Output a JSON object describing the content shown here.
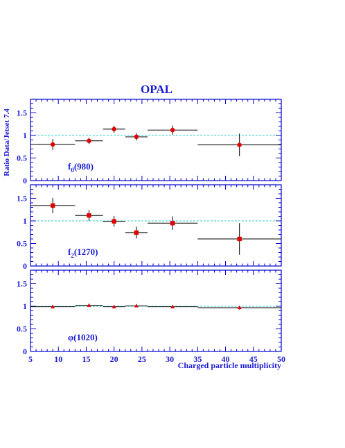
{
  "figure": {
    "title": "OPAL",
    "ylabel": "Ratio Data/Jetset 7.4",
    "xlabel": "Charged particle multiplicity"
  },
  "colors": {
    "axis": "#0000cc",
    "text": "#1a1ad6",
    "reference": "#33cccc",
    "marker": "#e00000",
    "errorbar": "#000000"
  },
  "chart_data": [
    {
      "type": "scatter",
      "label": "f0(980)",
      "label_main": "f",
      "label_sub": "0",
      "label_tail": "(980)",
      "marker": "circle",
      "xlim": [
        5,
        50
      ],
      "ylim": [
        0,
        1.8
      ],
      "yticks": [
        0,
        0.5,
        1,
        1.5
      ],
      "ytick_labels": [
        "0",
        "0.5",
        "1",
        "1.5"
      ],
      "reference_line": 1,
      "points": [
        {
          "x": 9,
          "xlo": 5,
          "xhi": 13,
          "y": 0.8,
          "yerr": 0.12
        },
        {
          "x": 15.5,
          "xlo": 13,
          "xhi": 18,
          "y": 0.88,
          "yerr": 0.07
        },
        {
          "x": 20,
          "xlo": 18,
          "xhi": 22,
          "y": 1.14,
          "yerr": 0.08
        },
        {
          "x": 24,
          "xlo": 22,
          "xhi": 26,
          "y": 0.97,
          "yerr": 0.08
        },
        {
          "x": 30.5,
          "xlo": 26,
          "xhi": 35,
          "y": 1.12,
          "yerr": 0.1
        },
        {
          "x": 42.5,
          "xlo": 35,
          "xhi": 50,
          "y": 0.79,
          "yerr": 0.25
        }
      ]
    },
    {
      "type": "scatter",
      "label": "f2(1270)",
      "label_main": "f",
      "label_sub": "2",
      "label_tail": "(1270)",
      "marker": "square",
      "xlim": [
        5,
        50
      ],
      "ylim": [
        0,
        1.8
      ],
      "yticks": [
        0,
        0.5,
        1,
        1.5
      ],
      "ytick_labels": [
        "0",
        "0.5",
        "1",
        "1.5"
      ],
      "reference_line": 1,
      "points": [
        {
          "x": 9,
          "xlo": 5,
          "xhi": 13,
          "y": 1.34,
          "yerr": 0.17
        },
        {
          "x": 15.5,
          "xlo": 13,
          "xhi": 18,
          "y": 1.12,
          "yerr": 0.12
        },
        {
          "x": 20,
          "xlo": 18,
          "xhi": 22,
          "y": 0.99,
          "yerr": 0.12
        },
        {
          "x": 24,
          "xlo": 22,
          "xhi": 26,
          "y": 0.74,
          "yerr": 0.13
        },
        {
          "x": 30.5,
          "xlo": 26,
          "xhi": 35,
          "y": 0.95,
          "yerr": 0.15
        },
        {
          "x": 42.5,
          "xlo": 35,
          "xhi": 50,
          "y": 0.6,
          "yerr": 0.35
        }
      ]
    },
    {
      "type": "scatter",
      "label": "φ(1020)",
      "label_main": "φ",
      "label_sub": "",
      "label_tail": "(1020)",
      "marker": "triangle",
      "xlim": [
        5,
        50
      ],
      "ylim": [
        0,
        1.8
      ],
      "yticks": [
        0,
        0.5,
        1,
        1.5
      ],
      "ytick_labels": [
        "0",
        "0.5",
        "1",
        "1.5"
      ],
      "xticks": [
        5,
        10,
        15,
        20,
        25,
        30,
        35,
        40,
        45,
        50
      ],
      "xtick_labels": [
        "5",
        "10",
        "15",
        "20",
        "25",
        "30",
        "35",
        "40",
        "45",
        "50"
      ],
      "reference_line": 1,
      "points": [
        {
          "x": 9,
          "xlo": 5,
          "xhi": 13,
          "y": 0.99,
          "yerr": 0.04
        },
        {
          "x": 15.5,
          "xlo": 13,
          "xhi": 18,
          "y": 1.02,
          "yerr": 0.02
        },
        {
          "x": 20,
          "xlo": 18,
          "xhi": 22,
          "y": 0.99,
          "yerr": 0.02
        },
        {
          "x": 24,
          "xlo": 22,
          "xhi": 26,
          "y": 1.01,
          "yerr": 0.02
        },
        {
          "x": 30.5,
          "xlo": 26,
          "xhi": 35,
          "y": 0.99,
          "yerr": 0.02
        },
        {
          "x": 42.5,
          "xlo": 35,
          "xhi": 50,
          "y": 0.97,
          "yerr": 0.04
        }
      ]
    }
  ]
}
